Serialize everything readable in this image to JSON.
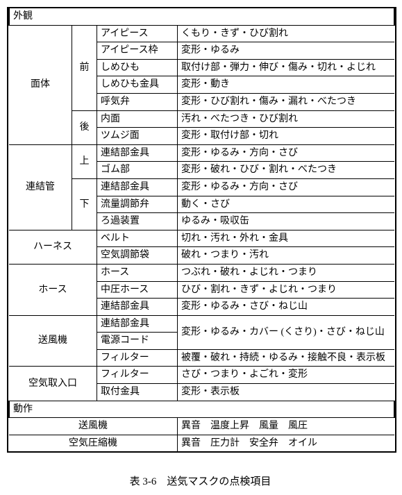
{
  "caption": "表 3-6　送気マスクの点検項目",
  "section1": "外観",
  "section2": "動作",
  "groups": {
    "mentai": "面体",
    "renketsukan": "連結管",
    "harness": "ハーネス",
    "hose": "ホース",
    "soufuuki": "送風機",
    "kuuki_toriireguchi": "空気取入口"
  },
  "sub": {
    "mae": "前",
    "ato": "後",
    "ue": "上",
    "shita": "下"
  },
  "items": {
    "eyepiece": "アイピース",
    "eyepiece_frame": "アイピース枠",
    "shimehimo": "しめひも",
    "shimehimo_kanagu": "しめひも金具",
    "kokiben": "呼気弁",
    "naimen": "内面",
    "tsumuji": "ツムジ面",
    "renketsubu_kanagu": "連結部金具",
    "gomubu": "ゴム部",
    "ryuuryou": "流量調節弁",
    "roka": "ろ過装置",
    "belt": "ベルト",
    "kuuki_chousetsu": "空気調節袋",
    "hose": "ホース",
    "chuuatsu_hose": "中圧ホース",
    "dengen": "電源コード",
    "filter": "フィルター",
    "toritsuke_kanagu": "取付金具"
  },
  "checks": {
    "eyepiece": "くもり・きず・ひび割れ",
    "eyepiece_frame": "変形・ゆるみ",
    "shimehimo": "取付け部・弾力・伸び・傷み・切れ・よじれ",
    "shimehimo_kanagu": "変形・動き",
    "kokiben": "変形・ひび割れ・傷み・漏れ・べたつき",
    "naimen": "汚れ・べたつき・ひび割れ",
    "tsumuji": "変形・取付け部・切れ",
    "renketsu_ue_kanagu": "変形・ゆるみ・方向・さび",
    "gomubu": "変形・破れ・ひび・割れ・べたつき",
    "renketsu_shita_kanagu": "変形・ゆるみ・方向・さび",
    "ryuuryou": "動く・さび",
    "roka": "ゆるみ・吸収缶",
    "belt": "切れ・汚れ・外れ・金具",
    "kuuki_chousetsu": "破れ・つまり・汚れ",
    "hose": "つぶれ・破れ・よじれ・つまり",
    "chuuatsu_hose": "ひび・割れ・きず・よじれ・つまり",
    "hose_renketsu": "変形・ゆるみ・さび・ねじ山",
    "soufuuki_renketsu": "変形・ゆるみ・カバー (くさり)・さび・ねじ山",
    "dengen": "被覆・破れ・持続・ゆるみ・接触不良・表示板",
    "filter_kuuki": "さび・つまり・よごれ・変形",
    "toritsuke_kanagu": "変形・表示板"
  },
  "dousa": {
    "soufuuki_label": "送風機",
    "soufuuki_check": "異音　温度上昇　風量　風圧",
    "asshukuki_label": "空気圧縮機",
    "asshukuki_check": "異音　圧力計　安全弁　オイル"
  }
}
